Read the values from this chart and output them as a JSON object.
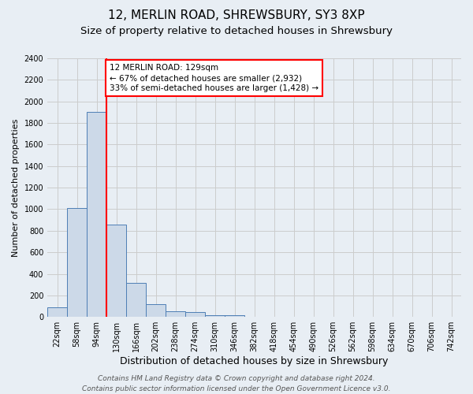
{
  "title1": "12, MERLIN ROAD, SHREWSBURY, SY3 8XP",
  "title2": "Size of property relative to detached houses in Shrewsbury",
  "xlabel": "Distribution of detached houses by size in Shrewsbury",
  "ylabel": "Number of detached properties",
  "bin_labels": [
    "22sqm",
    "58sqm",
    "94sqm",
    "130sqm",
    "166sqm",
    "202sqm",
    "238sqm",
    "274sqm",
    "310sqm",
    "346sqm",
    "382sqm",
    "418sqm",
    "454sqm",
    "490sqm",
    "526sqm",
    "562sqm",
    "598sqm",
    "634sqm",
    "670sqm",
    "706sqm",
    "742sqm"
  ],
  "bar_values": [
    90,
    1010,
    1900,
    855,
    315,
    120,
    55,
    45,
    18,
    18,
    0,
    0,
    0,
    0,
    0,
    0,
    0,
    0,
    0,
    0,
    0
  ],
  "bar_color": "#ccd9e8",
  "bar_edgecolor": "#4d7eb5",
  "property_line_x": 3,
  "annotation_text": "12 MERLIN ROAD: 129sqm\n← 67% of detached houses are smaller (2,932)\n33% of semi-detached houses are larger (1,428) →",
  "annotation_box_color": "white",
  "annotation_box_edgecolor": "red",
  "vline_color": "red",
  "ylim": [
    0,
    2400
  ],
  "yticks": [
    0,
    200,
    400,
    600,
    800,
    1000,
    1200,
    1400,
    1600,
    1800,
    2000,
    2200,
    2400
  ],
  "grid_color": "#cccccc",
  "background_color": "#e8eef4",
  "plot_bg_color": "#e8eef4",
  "footer_text": "Contains HM Land Registry data © Crown copyright and database right 2024.\nContains public sector information licensed under the Open Government Licence v3.0.",
  "title1_fontsize": 11,
  "title2_fontsize": 9.5,
  "xlabel_fontsize": 9,
  "ylabel_fontsize": 8,
  "footer_fontsize": 6.5,
  "tick_fontsize": 7,
  "annot_fontsize": 7.5
}
